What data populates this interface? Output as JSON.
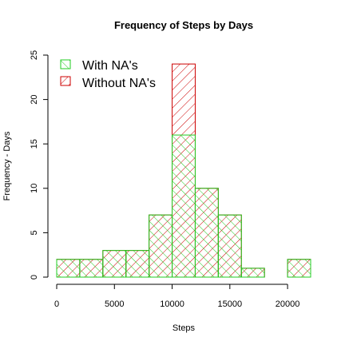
{
  "chart_data": {
    "type": "histogram",
    "title": "Frequency of Steps by Days",
    "xlabel": "Steps",
    "ylabel": "Frequency - Days",
    "xlim": [
      0,
      22000
    ],
    "ylim": [
      0,
      25
    ],
    "xticks": [
      0,
      5000,
      10000,
      15000,
      20000
    ],
    "yticks": [
      0,
      5,
      10,
      15,
      20,
      25
    ],
    "bin_width": 2000,
    "bin_starts": [
      0,
      2000,
      4000,
      6000,
      8000,
      10000,
      12000,
      14000,
      16000,
      18000,
      20000
    ],
    "series": [
      {
        "name": "Without NA's",
        "color": "#cc0000",
        "values": [
          2,
          2,
          3,
          3,
          7,
          24,
          10,
          7,
          1,
          0,
          2
        ]
      },
      {
        "name": "With NA's",
        "color": "#22cc22",
        "values": [
          2,
          2,
          3,
          3,
          7,
          16,
          10,
          7,
          1,
          0,
          2
        ]
      }
    ],
    "legend_position": "top-left",
    "grid": false
  }
}
